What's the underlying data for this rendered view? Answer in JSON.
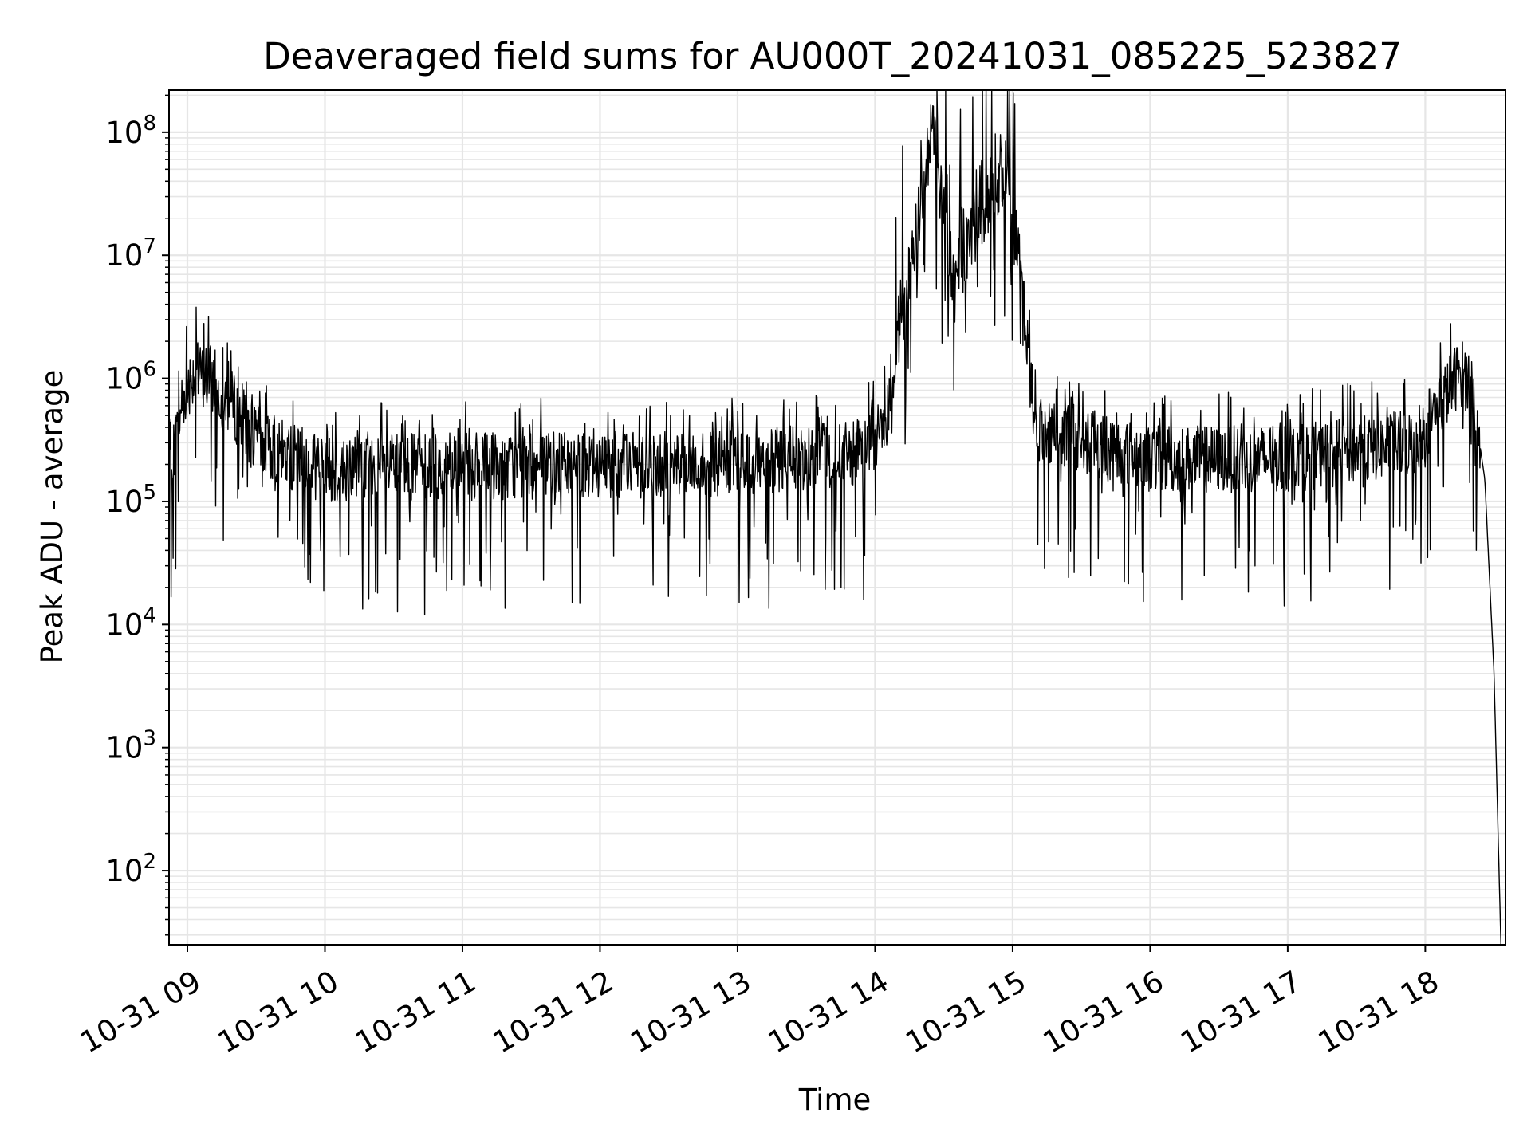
{
  "chart_data": {
    "type": "line",
    "title": "Deaveraged field sums for AU000T_20241031_085225_523827",
    "xlabel": "Time",
    "ylabel": "Peak ADU - average",
    "x_scale": "time",
    "y_scale": "log",
    "xlim": [
      "2024-10-31 08:52",
      "2024-10-31 18:35"
    ],
    "ylim": [
      25,
      220000000
    ],
    "grid": true,
    "line_color": "#000000",
    "grid_color": "#e6e6e6",
    "x_ticks": [
      {
        "t": "2024-10-31 09:00",
        "label": "10-31 09"
      },
      {
        "t": "2024-10-31 10:00",
        "label": "10-31 10"
      },
      {
        "t": "2024-10-31 11:00",
        "label": "10-31 11"
      },
      {
        "t": "2024-10-31 12:00",
        "label": "10-31 12"
      },
      {
        "t": "2024-10-31 13:00",
        "label": "10-31 13"
      },
      {
        "t": "2024-10-31 14:00",
        "label": "10-31 14"
      },
      {
        "t": "2024-10-31 15:00",
        "label": "10-31 15"
      },
      {
        "t": "2024-10-31 16:00",
        "label": "10-31 16"
      },
      {
        "t": "2024-10-31 17:00",
        "label": "10-31 17"
      },
      {
        "t": "2024-10-31 18:00",
        "label": "10-31 18"
      }
    ],
    "y_ticks": [
      {
        "base": "10",
        "exp": "2",
        "value": 100
      },
      {
        "base": "10",
        "exp": "3",
        "value": 1000
      },
      {
        "base": "10",
        "exp": "4",
        "value": 10000
      },
      {
        "base": "10",
        "exp": "5",
        "value": 100000
      },
      {
        "base": "10",
        "exp": "6",
        "value": 1000000
      },
      {
        "base": "10",
        "exp": "7",
        "value": 10000000
      },
      {
        "base": "10",
        "exp": "8",
        "value": 100000000
      }
    ],
    "series": [
      {
        "values_description_points": [
          [
            "2024-10-31 08:52",
            250000
          ],
          [
            "2024-10-31 08:55",
            300000
          ],
          [
            "2024-10-31 08:58",
            700000
          ],
          [
            "2024-10-31 09:02",
            1100000
          ],
          [
            "2024-10-31 09:10",
            1000000
          ],
          [
            "2024-10-31 09:20",
            600000
          ],
          [
            "2024-10-31 09:30",
            300000
          ],
          [
            "2024-10-31 10:00",
            180000
          ],
          [
            "2024-10-31 11:00",
            190000
          ],
          [
            "2024-10-31 12:00",
            200000
          ],
          [
            "2024-10-31 13:00",
            200000
          ],
          [
            "2024-10-31 13:55",
            250000
          ],
          [
            "2024-10-31 14:05",
            500000
          ],
          [
            "2024-10-31 14:25",
            107000000
          ],
          [
            "2024-10-31 14:34",
            6000000
          ],
          [
            "2024-10-31 14:48",
            24000000
          ],
          [
            "2024-10-31 14:53",
            28000000
          ],
          [
            "2024-10-31 14:58",
            63000000
          ],
          [
            "2024-10-31 15:10",
            400000
          ],
          [
            "2024-10-31 16:00",
            220000
          ],
          [
            "2024-10-31 17:00",
            220000
          ],
          [
            "2024-10-31 17:55",
            300000
          ],
          [
            "2024-10-31 18:08",
            700000
          ],
          [
            "2024-10-31 18:15",
            1150000
          ],
          [
            "2024-10-31 18:20",
            900000
          ],
          [
            "2024-10-31 18:26",
            150000
          ],
          [
            "2024-10-31 18:30",
            4000
          ],
          [
            "2024-10-31 18:33",
            25
          ]
        ]
      }
    ]
  }
}
